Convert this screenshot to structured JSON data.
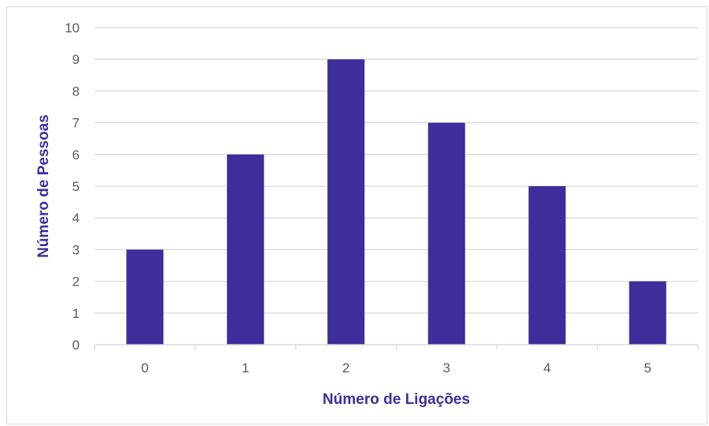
{
  "chart_data": {
    "type": "bar",
    "title": "",
    "xlabel": "Número de Ligações",
    "ylabel": "Número de Pessoas",
    "categories": [
      "0",
      "1",
      "2",
      "3",
      "4",
      "5"
    ],
    "values": [
      3,
      6,
      9,
      7,
      5,
      2
    ],
    "ylim": [
      0,
      10
    ],
    "yticks": [
      "0",
      "1",
      "2",
      "3",
      "4",
      "5",
      "6",
      "7",
      "8",
      "9",
      "10"
    ],
    "grid": true,
    "legend": "none",
    "colors": {
      "bar": "#3d2e9c",
      "axis_title": "#3d2e9c",
      "grid": "#d9d9d9",
      "tick_text": "#595959"
    }
  }
}
